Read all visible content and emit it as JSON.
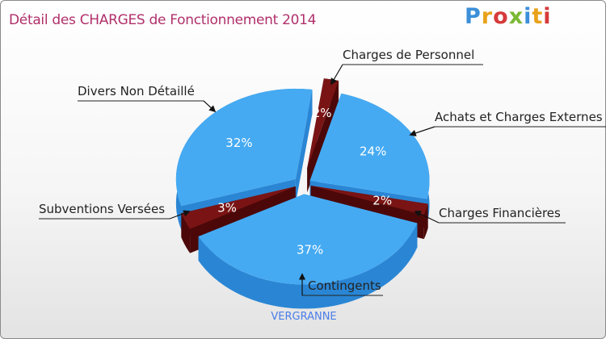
{
  "title": "Détail des CHARGES de Fonctionnement 2014",
  "logo": {
    "text": "Proxiti",
    "letters": [
      "P",
      "r",
      "o",
      "x",
      "i",
      "t",
      "i"
    ],
    "colors": [
      "#3c8fd8",
      "#e8a21a",
      "#d63a3a",
      "#7bb833",
      "#3c8fd8",
      "#e8a21a",
      "#d63a3a"
    ]
  },
  "subtitle": "VERGRANNE",
  "colors": {
    "blue_top": "#45aaf2",
    "blue_side": "#2a86d4",
    "red_top": "#7a1414",
    "red_side": "#4c0808",
    "title": "#b0306b"
  },
  "chart_data": {
    "type": "pie",
    "title": "Détail des CHARGES de Fonctionnement 2014",
    "subtitle": "VERGRANNE",
    "slices": [
      {
        "label": "Charges de Personnel",
        "value": 2,
        "pct_label": "2%",
        "color": "red"
      },
      {
        "label": "Achats et Charges Externes",
        "value": 24,
        "pct_label": "24%",
        "color": "blue"
      },
      {
        "label": "Charges Financières",
        "value": 2,
        "pct_label": "2%",
        "color": "red"
      },
      {
        "label": "Contingents",
        "value": 37,
        "pct_label": "37%",
        "color": "blue"
      },
      {
        "label": "Subventions Versées",
        "value": 3,
        "pct_label": "3%",
        "color": "red"
      },
      {
        "label": "Divers Non Détaillé",
        "value": 32,
        "pct_label": "32%",
        "color": "blue"
      }
    ]
  }
}
